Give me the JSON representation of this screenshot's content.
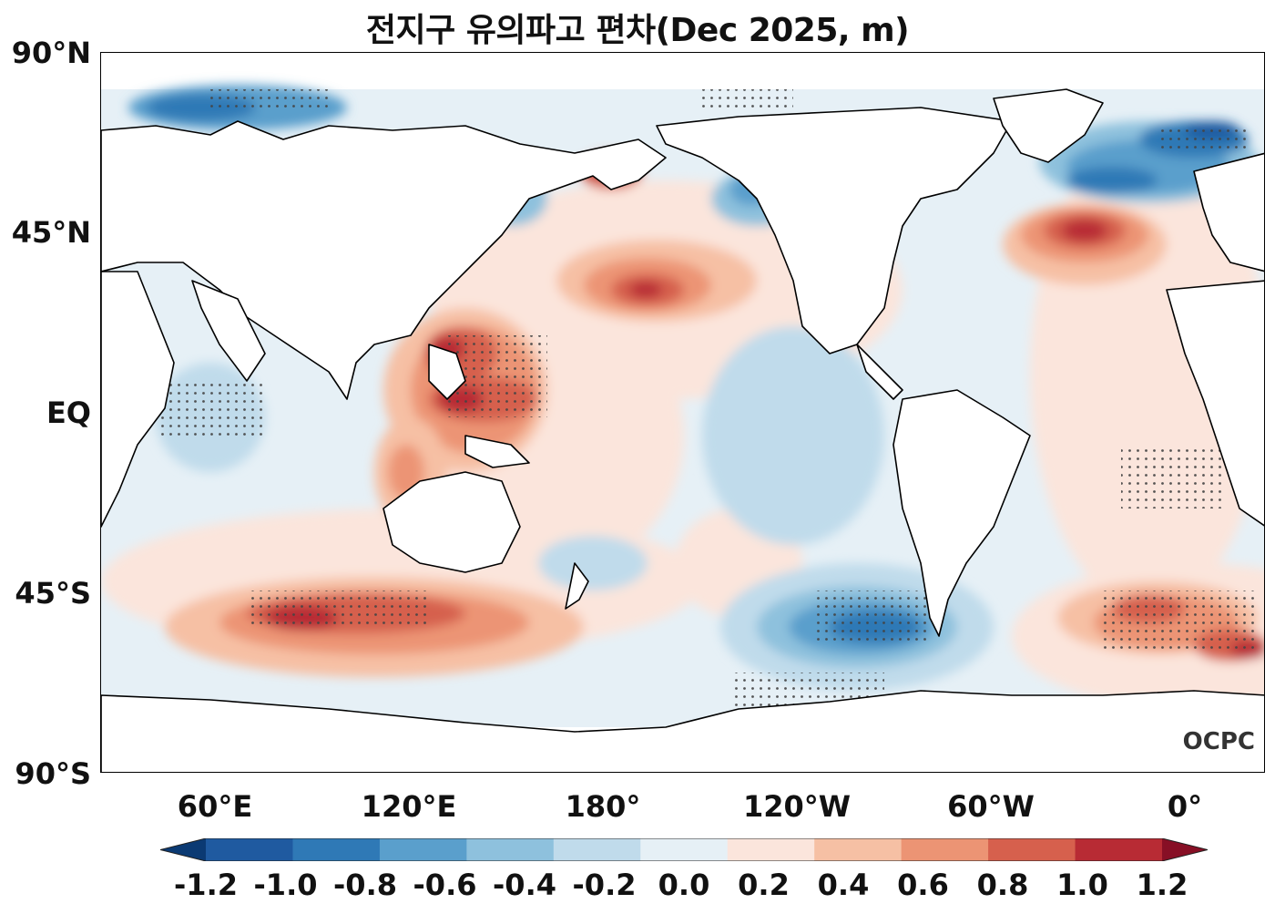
{
  "title": "전지구 유의파고 편차(Dec 2025, m)",
  "logo": "OCPC",
  "lat_labels": [
    "90°N",
    "45°N",
    "EQ",
    "45°S",
    "90°S"
  ],
  "lon_labels": [
    "60°E",
    "120°E",
    "180°",
    "120°W",
    "60°W",
    "0°"
  ],
  "colorbar": {
    "ticks": [
      "-1.2",
      "-1.0",
      "-0.8",
      "-0.6",
      "-0.4",
      "-0.2",
      "0.0",
      "0.2",
      "0.4",
      "0.6",
      "0.8",
      "1.0",
      "1.2"
    ],
    "colors": [
      "#0b3a73",
      "#1f5aa0",
      "#2f79b6",
      "#5a9fcc",
      "#8ec1dd",
      "#c0dbeb",
      "#e6f0f6",
      "#fbe5dc",
      "#f6c0a4",
      "#ec9474",
      "#d6604d",
      "#b82b34",
      "#870f25"
    ],
    "extend": "both"
  },
  "map": {
    "lon_range": [
      32,
      392
    ],
    "lat_range": [
      -90,
      90
    ],
    "variable": "significant wave height anomaly",
    "units": "m"
  }
}
